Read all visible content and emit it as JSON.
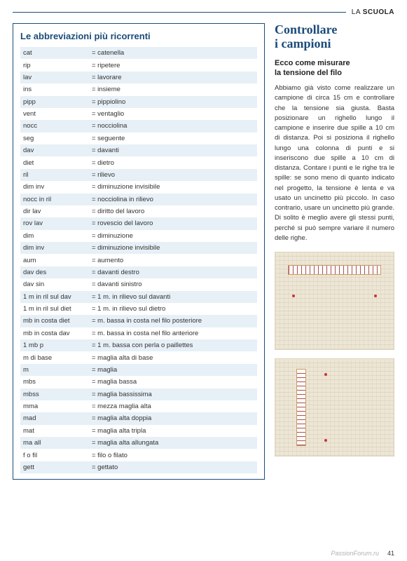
{
  "header": {
    "prefix": "LA ",
    "bold": "SCUOLA"
  },
  "box_title": "Le abbreviazioni più ricorrenti",
  "abbr": [
    {
      "k": "cat",
      "v": "= catenella"
    },
    {
      "k": "rip",
      "v": "= ripetere"
    },
    {
      "k": "lav",
      "v": "= lavorare"
    },
    {
      "k": "ins",
      "v": "= insieme"
    },
    {
      "k": "pipp",
      "v": "= pippiolino"
    },
    {
      "k": "vent",
      "v": "= ventaglio"
    },
    {
      "k": "nocc",
      "v": "= nocciolina"
    },
    {
      "k": "seg",
      "v": "= seguente"
    },
    {
      "k": "dav",
      "v": "= davanti"
    },
    {
      "k": "diet",
      "v": "= dietro"
    },
    {
      "k": "ril",
      "v": "= rilievo"
    },
    {
      "k": "dim inv",
      "v": "= diminuzione invisibile"
    },
    {
      "k": "nocc in ril",
      "v": "= nocciolina in rilievo"
    },
    {
      "k": "dir lav",
      "v": "= diritto del lavoro"
    },
    {
      "k": "rov lav",
      "v": "= rovescio del lavoro"
    },
    {
      "k": "dim",
      "v": "= diminuzione"
    },
    {
      "k": "dim inv",
      "v": "= diminuzione invisibile"
    },
    {
      "k": "aum",
      "v": "= aumento"
    },
    {
      "k": "dav des",
      "v": "= davanti destro"
    },
    {
      "k": "dav sin",
      "v": "= davanti sinistro"
    },
    {
      "k": "1 m in ril sul dav",
      "v": "= 1 m. in rilievo sul davanti"
    },
    {
      "k": "1 m in ril sul diet",
      "v": "= 1 m. in rilievo sul dietro"
    },
    {
      "k": "mb in costa diet",
      "v": "= m. bassa in costa nel filo posteriore"
    },
    {
      "k": "mb in costa dav",
      "v": "= m. bassa in costa nel filo anteriore"
    },
    {
      "k": "1 mb p",
      "v": "= 1 m. bassa con perla o paillettes"
    },
    {
      "k": "m di base",
      "v": "= maglia alta di base"
    },
    {
      "k": "m",
      "v": "= maglia"
    },
    {
      "k": "mbs",
      "v": "= maglia bassa"
    },
    {
      "k": "mbss",
      "v": "= maglia bassissima"
    },
    {
      "k": "mma",
      "v": "= mezza maglia alta"
    },
    {
      "k": "mad",
      "v": "= maglia alta doppia"
    },
    {
      "k": "mat",
      "v": "= maglia alta tripla"
    },
    {
      "k": "ma all",
      "v": "= maglia alta allungata"
    },
    {
      "k": "f o fil",
      "v": "= filo o filato"
    },
    {
      "k": "gett",
      "v": "= gettato"
    }
  ],
  "right": {
    "title_l1": "Controllare",
    "title_l2": "i campioni",
    "sub_l1": "Ecco come misurare",
    "sub_l2": "la tensione del filo",
    "body": "Abbiamo già visto come realizzare un campione di circa 15 cm e controllare che la tensione sia giusta. Basta posizionare un righello lungo il campione e inserire due spille a 10 cm di distanza. Poi si posiziona il righello lungo una colonna di punti e si inseriscono due spille a 10 cm di distanza. Contare i punti e le righe tra le spille: se sono meno di quanto indicato nel progetto, la tensione è lenta e va usato un uncinetto più piccolo. In caso contrario, usare un uncinetto più grande. Di solito è meglio avere gli stessi punti, perché si può sempre variare il numero delle righe."
  },
  "page_number": "41",
  "watermark": "PassionForum.ru",
  "colors": {
    "accent": "#1a4b7a",
    "row_alt": "#e6f0f6",
    "swatch_bg": "#eee6d4"
  }
}
